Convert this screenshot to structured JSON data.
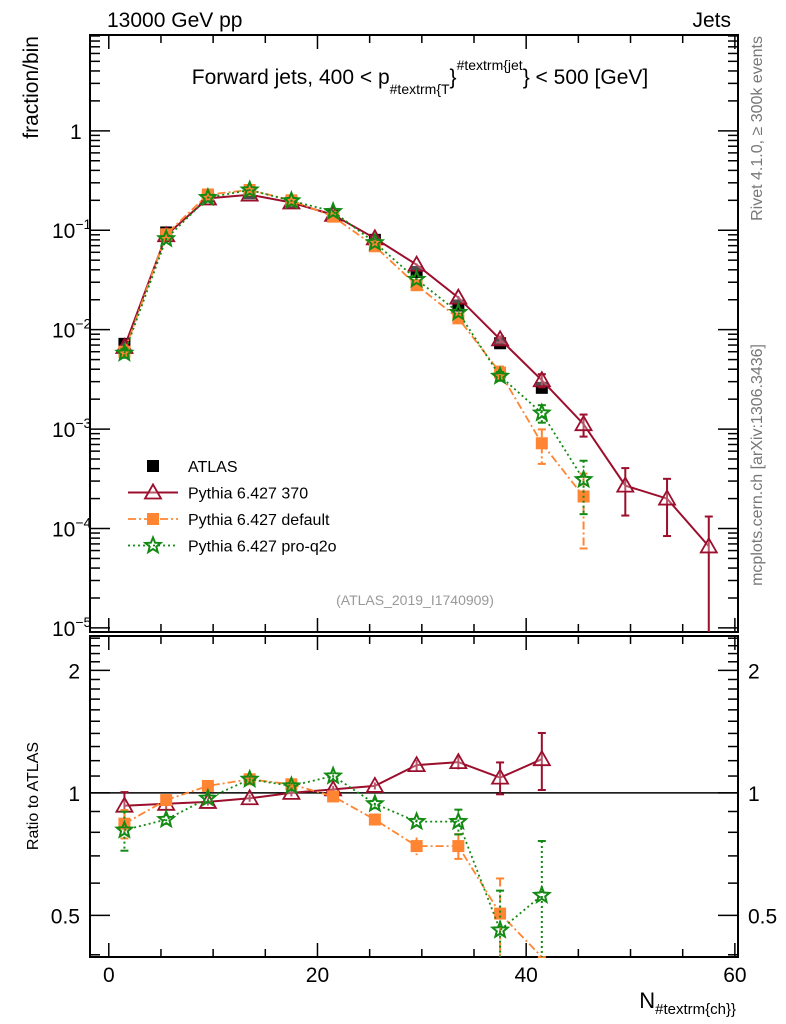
{
  "header": {
    "left": "13000 GeV pp",
    "right": "Jets"
  },
  "side_text": {
    "top": "Rivet 4.1.0, ≥ 300k events",
    "bottom": "mcplots.cern.ch [arXiv:1306.3436]"
  },
  "watermark": "(ATLAS_2019_I1740909)",
  "chart_data": [
    {
      "type": "line",
      "panel": "main",
      "title": {
        "prefix": "Forward jets, 400 < p",
        "sub": "#textrm{T",
        "mid": "}",
        "sup": "#textrm{jet",
        "suffix": "} < 500 [GeV]"
      },
      "ylabel": "fraction/bin",
      "yscale": "log",
      "ylim": [
        9.1e-06,
        9.2
      ],
      "xlim": [
        -1.8,
        60.3
      ],
      "yticks": [
        {
          "v": 1,
          "base": "1",
          "exp": ""
        },
        {
          "v": 0.1,
          "base": "10",
          "exp": "−1"
        },
        {
          "v": 0.01,
          "base": "10",
          "exp": "−2"
        },
        {
          "v": 0.001,
          "base": "10",
          "exp": "−3"
        },
        {
          "v": 0.0001,
          "base": "10",
          "exp": "−4"
        },
        {
          "v": 1e-05,
          "base": "10",
          "exp": "−5"
        }
      ],
      "legend_position": "center-left",
      "series": [
        {
          "name": "ATLAS",
          "color": "#000000",
          "marker": "square",
          "line": "none",
          "x": [
            1.5,
            5.5,
            9.5,
            13.5,
            17.5,
            21.5,
            25.5,
            29.5,
            33.5,
            37.5,
            41.5
          ],
          "y": [
            0.0072,
            0.095,
            0.22,
            0.235,
            0.19,
            0.14,
            0.08,
            0.038,
            0.0175,
            0.0073,
            0.0026
          ],
          "rel_err": [
            0.03,
            0.02,
            0.02,
            0.02,
            0.02,
            0.02,
            0.02,
            0.03,
            0.04,
            0.05,
            0.06
          ]
        },
        {
          "name": "Pythia 6.427 370",
          "color": "#9b0e2c",
          "marker": "open-triangle",
          "line": "solid",
          "x": [
            1.5,
            5.5,
            9.5,
            13.5,
            17.5,
            21.5,
            25.5,
            29.5,
            33.5,
            37.5,
            41.5,
            45.5,
            49.5,
            53.5,
            57.5
          ],
          "y": [
            0.0067,
            0.089,
            0.209,
            0.228,
            0.19,
            0.143,
            0.083,
            0.045,
            0.021,
            0.008,
            0.0031,
            0.00112,
            0.00027,
            0.0002,
            6.6e-05
          ],
          "rel_err": [
            0.05,
            0.02,
            0.02,
            0.02,
            0.02,
            0.02,
            0.02,
            0.03,
            0.04,
            0.07,
            0.15,
            0.25,
            0.5,
            0.58,
            1.0
          ]
        },
        {
          "name": "Pythia 6.427 default",
          "color": "#ff8533",
          "marker": "square",
          "line": "dashdot",
          "x": [
            1.5,
            5.5,
            9.5,
            13.5,
            17.5,
            21.5,
            25.5,
            29.5,
            33.5,
            37.5,
            41.5,
            45.5
          ],
          "y": [
            0.006,
            0.091,
            0.229,
            0.254,
            0.2,
            0.137,
            0.069,
            0.028,
            0.013,
            0.0037,
            0.00072,
            0.00021
          ],
          "rel_err": [
            0.06,
            0.02,
            0.02,
            0.02,
            0.02,
            0.02,
            0.03,
            0.04,
            0.06,
            0.15,
            0.38,
            0.7
          ]
        },
        {
          "name": "Pythia 6.427 pro-q2o",
          "color": "#138a13",
          "marker": "star",
          "line": "dotted",
          "x": [
            1.5,
            5.5,
            9.5,
            13.5,
            17.5,
            21.5,
            25.5,
            29.5,
            33.5,
            37.5,
            41.5,
            45.5
          ],
          "y": [
            0.0058,
            0.082,
            0.213,
            0.254,
            0.198,
            0.154,
            0.075,
            0.032,
            0.0149,
            0.0034,
            0.00145,
            0.00031
          ],
          "rel_err": [
            0.1,
            0.02,
            0.02,
            0.02,
            0.02,
            0.02,
            0.03,
            0.04,
            0.06,
            0.1,
            0.2,
            0.55
          ]
        }
      ]
    },
    {
      "type": "line",
      "panel": "ratio",
      "ylabel": "Ratio to ATLAS",
      "xlabel": {
        "main": "N",
        "sub": "#textrm{ch}}"
      },
      "yscale": "log",
      "ylim": [
        0.395,
        2.43
      ],
      "xlim": [
        -1.8,
        60.3
      ],
      "yticks": [
        {
          "v": 0.5,
          "label": "0.5"
        },
        {
          "v": 1,
          "label": "1"
        },
        {
          "v": 2,
          "label": "2"
        }
      ],
      "xticks": [
        {
          "v": 0,
          "label": "0"
        },
        {
          "v": 20,
          "label": "20"
        },
        {
          "v": 40,
          "label": "40"
        },
        {
          "v": 60,
          "label": "60"
        }
      ],
      "reference": 1,
      "series": [
        {
          "name": "Pythia 6.427 370",
          "x": [
            1.5,
            5.5,
            9.5,
            13.5,
            17.5,
            21.5,
            25.5,
            29.5,
            33.5,
            37.5,
            41.5
          ],
          "y": [
            0.93,
            0.94,
            0.95,
            0.97,
            1.0,
            1.02,
            1.04,
            1.17,
            1.19,
            1.09,
            1.21
          ],
          "rel_err": [
            0.08,
            0.03,
            0.02,
            0.02,
            0.02,
            0.02,
            0.02,
            0.03,
            0.04,
            0.09,
            0.16
          ]
        },
        {
          "name": "Pythia 6.427 default",
          "x": [
            1.5,
            5.5,
            9.5,
            13.5,
            17.5,
            21.5,
            25.5,
            29.5,
            33.5,
            37.5,
            41.5
          ],
          "y": [
            0.84,
            0.96,
            1.04,
            1.08,
            1.05,
            0.98,
            0.86,
            0.74,
            0.74,
            0.505,
            0.28
          ],
          "rel_err": [
            0.08,
            0.03,
            0.02,
            0.02,
            0.02,
            0.02,
            0.03,
            0.05,
            0.07,
            0.22,
            0.38
          ]
        },
        {
          "name": "Pythia 6.427 pro-q2o",
          "x": [
            1.5,
            5.5,
            9.5,
            13.5,
            17.5,
            21.5,
            25.5,
            29.5,
            33.5,
            37.5,
            41.5
          ],
          "y": [
            0.81,
            0.86,
            0.97,
            1.08,
            1.04,
            1.1,
            0.94,
            0.85,
            0.85,
            0.46,
            0.56
          ],
          "rel_err": [
            0.11,
            0.03,
            0.02,
            0.02,
            0.02,
            0.02,
            0.03,
            0.04,
            0.07,
            0.25,
            0.36
          ]
        }
      ]
    }
  ]
}
